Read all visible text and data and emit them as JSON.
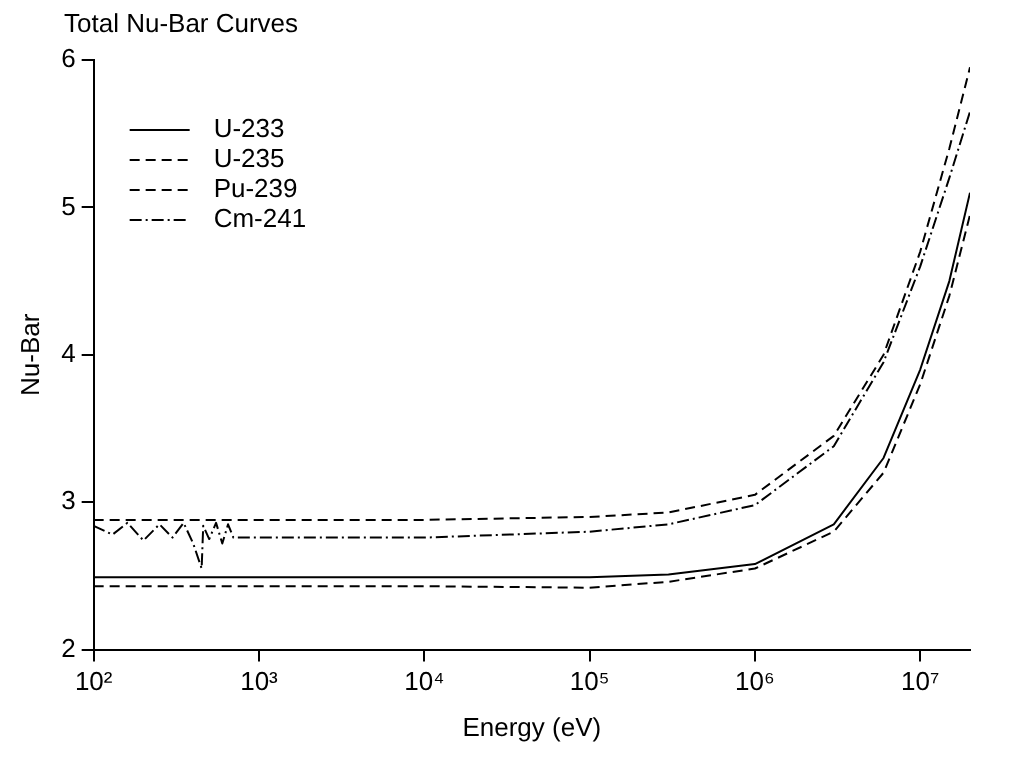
{
  "chart_data": {
    "type": "line",
    "title": "Total Nu-Bar Curves",
    "xlabel": "Energy (eV)",
    "ylabel": "Nu-Bar",
    "log": "x",
    "grid": false,
    "legend": "top left",
    "marker": "none",
    "xlim": [
      100,
      20000000
    ],
    "xticks": [
      {
        "value": 100,
        "label": "10²"
      },
      {
        "value": 1000,
        "label": "10³"
      },
      {
        "value": 10000,
        "label": "10⁴"
      },
      {
        "value": 100000,
        "label": "10⁵"
      },
      {
        "value": 1000000,
        "label": "10⁶"
      },
      {
        "value": 10000000,
        "label": "10⁷"
      }
    ],
    "ylim": [
      2,
      6
    ],
    "yticks": [
      2,
      3,
      4,
      5,
      6
    ],
    "series": [
      {
        "name": "U-233",
        "color": "#000000",
        "line_style": "solid",
        "x": [
          100,
          10000,
          100000,
          300000,
          1000000,
          3000000,
          6000000,
          10000000,
          15000000,
          20000000
        ],
        "values": [
          2.49,
          2.49,
          2.49,
          2.51,
          2.58,
          2.85,
          3.3,
          3.9,
          4.5,
          5.1
        ]
      },
      {
        "name": "U-235",
        "color": "#000000",
        "line_style": "dashed",
        "x": [
          100,
          10000,
          100000,
          300000,
          1000000,
          3000000,
          6000000,
          10000000,
          15000000,
          20000000
        ],
        "values": [
          2.43,
          2.43,
          2.42,
          2.46,
          2.55,
          2.8,
          3.2,
          3.8,
          4.4,
          4.95
        ]
      },
      {
        "name": "Pu-239",
        "color": "#000000",
        "line_style": "dashed",
        "x": [
          100,
          10000,
          100000,
          300000,
          1000000,
          3000000,
          6000000,
          10000000,
          15000000,
          20000000
        ],
        "values": [
          2.88,
          2.88,
          2.9,
          2.93,
          3.05,
          3.45,
          4.0,
          4.7,
          5.4,
          5.95
        ]
      },
      {
        "name": "Cm-241",
        "color": "#000000",
        "line_style": "dashdot",
        "x": [
          100,
          130,
          160,
          200,
          250,
          300,
          350,
          400,
          450,
          460,
          500,
          550,
          600,
          650,
          700,
          10000,
          100000,
          300000,
          1000000,
          3000000,
          6000000,
          10000000,
          15000000,
          20000000
        ],
        "values": [
          2.84,
          2.78,
          2.86,
          2.74,
          2.85,
          2.76,
          2.86,
          2.72,
          2.55,
          2.84,
          2.75,
          2.86,
          2.72,
          2.85,
          2.76,
          2.76,
          2.8,
          2.85,
          2.98,
          3.38,
          3.95,
          4.6,
          5.2,
          5.65
        ]
      }
    ]
  }
}
